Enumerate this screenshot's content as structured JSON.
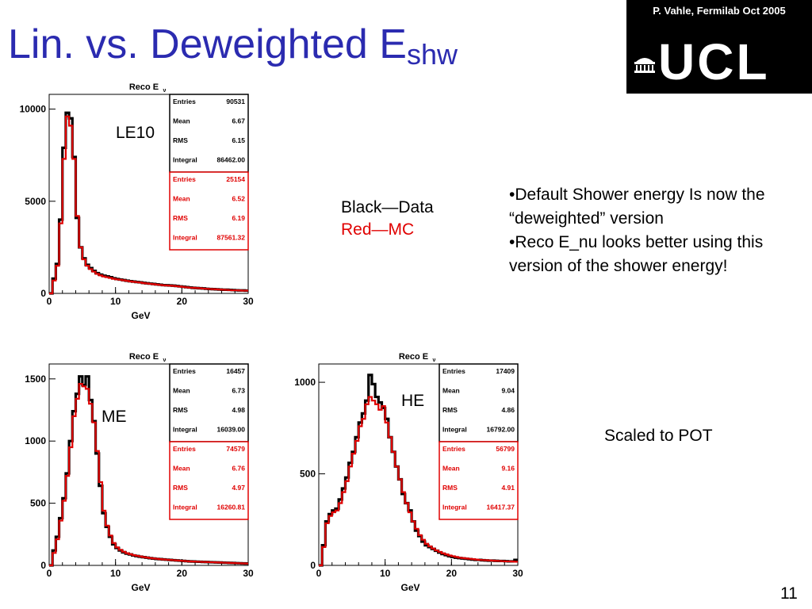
{
  "slide": {
    "title_main": "Lin. vs. Deweighted E",
    "title_sub": "shw",
    "credit": "P. Vahle, Fermilab Oct 2005",
    "logo_text": "UCL",
    "legend_black": "Black—Data",
    "legend_red": "Red—MC",
    "bullet1": "•Default Shower energy Is now the “deweighted” version",
    "bullet2": "•Reco E_nu looks better using this version of the shower energy!",
    "scaled_note": "Scaled to POT",
    "page_number": "11",
    "colors": {
      "title": "#2b2bb0",
      "data": "#000000",
      "mc": "#e00000",
      "logo_bg": "#000000"
    }
  },
  "chart_data": [
    {
      "type": "line",
      "id": "le10",
      "label": "LE10",
      "title": "Reco E",
      "title_sub": "ν",
      "xlabel": "GeV",
      "xlim": [
        0,
        30
      ],
      "ylim": [
        0,
        10800
      ],
      "xticks": [
        0,
        10,
        20,
        30
      ],
      "yticks": [
        0,
        5000,
        10000
      ],
      "ytick_labels": [
        "0",
        "5000",
        "10000"
      ],
      "bin_width": 0.5,
      "stats_data": {
        "Entries": "90531",
        "Mean": "6.67",
        "RMS": "6.15",
        "Integral": "86462.00"
      },
      "stats_mc": {
        "Entries": "25154",
        "Mean": "6.52",
        "RMS": "6.19",
        "Integral": "87561.32"
      },
      "series": [
        {
          "name": "Data",
          "color": "#000000",
          "values": [
            0,
            800,
            1600,
            4000,
            7900,
            9800,
            9500,
            7400,
            4100,
            2500,
            1900,
            1550,
            1370,
            1220,
            1100,
            1020,
            960,
            920,
            880,
            820,
            780,
            750,
            720,
            690,
            660,
            640,
            620,
            600,
            570,
            550,
            530,
            510,
            490,
            470,
            450,
            440,
            430,
            420,
            400,
            380,
            360,
            340,
            320,
            300,
            290,
            280,
            270,
            250,
            240,
            230,
            220,
            210,
            200,
            200,
            190,
            180,
            170,
            160,
            160,
            150
          ]
        },
        {
          "name": "MC",
          "color": "#e00000",
          "values": [
            0,
            700,
            1500,
            3800,
            7300,
            9600,
            9100,
            7300,
            4200,
            2500,
            1850,
            1500,
            1320,
            1180,
            1060,
            980,
            920,
            880,
            840,
            790,
            760,
            740,
            710,
            680,
            650,
            630,
            610,
            590,
            560,
            540,
            520,
            500,
            480,
            460,
            440,
            430,
            420,
            410,
            390,
            370,
            350,
            330,
            310,
            300,
            290,
            280,
            260,
            250,
            240,
            230,
            220,
            210,
            200,
            190,
            180,
            170,
            170,
            160,
            150,
            150
          ]
        }
      ]
    },
    {
      "type": "line",
      "id": "me",
      "label": "ME",
      "title": "Reco E",
      "title_sub": "ν",
      "xlabel": "GeV",
      "xlim": [
        0,
        30
      ],
      "ylim": [
        0,
        1620
      ],
      "xticks": [
        0,
        10,
        20,
        30
      ],
      "yticks": [
        0,
        500,
        1000,
        1500
      ],
      "ytick_labels": [
        "0",
        "500",
        "1000",
        "1500"
      ],
      "bin_width": 0.5,
      "stats_data": {
        "Entries": "16457",
        "Mean": "6.73",
        "RMS": "4.98",
        "Integral": "16039.00"
      },
      "stats_mc": {
        "Entries": "74579",
        "Mean": "6.76",
        "RMS": "4.97",
        "Integral": "16260.81"
      },
      "series": [
        {
          "name": "Data",
          "color": "#000000",
          "values": [
            0,
            120,
            230,
            380,
            540,
            740,
            1000,
            1240,
            1380,
            1520,
            1450,
            1520,
            1330,
            1160,
            900,
            640,
            420,
            310,
            230,
            170,
            140,
            120,
            105,
            95,
            88,
            80,
            75,
            70,
            66,
            62,
            58,
            55,
            52,
            50,
            48,
            46,
            44,
            42,
            40,
            38,
            36,
            34,
            32,
            31,
            30,
            29,
            28,
            27,
            26,
            25,
            24,
            23,
            22,
            21,
            20,
            19,
            18,
            17,
            16,
            15
          ]
        },
        {
          "name": "MC",
          "color": "#e00000",
          "values": [
            0,
            100,
            210,
            360,
            520,
            720,
            950,
            1200,
            1340,
            1460,
            1440,
            1420,
            1300,
            1150,
            920,
            670,
            440,
            320,
            240,
            180,
            145,
            125,
            110,
            98,
            90,
            82,
            77,
            72,
            67,
            63,
            59,
            56,
            53,
            50,
            48,
            46,
            44,
            42,
            40,
            38,
            36,
            34,
            32,
            31,
            30,
            29,
            28,
            27,
            26,
            25,
            24,
            23,
            22,
            21,
            20,
            19,
            18,
            17,
            16,
            15
          ]
        }
      ]
    },
    {
      "type": "line",
      "id": "he",
      "label": "HE",
      "title": "Reco E",
      "title_sub": "ν",
      "xlabel": "GeV",
      "xlim": [
        0,
        30
      ],
      "ylim": [
        0,
        1100
      ],
      "xticks": [
        0,
        10,
        20,
        30
      ],
      "yticks": [
        0,
        500,
        1000
      ],
      "ytick_labels": [
        "0",
        "500",
        "1000"
      ],
      "bin_width": 0.5,
      "stats_data": {
        "Entries": "17409",
        "Mean": "9.04",
        "RMS": "4.86",
        "Integral": "16792.00"
      },
      "stats_mc": {
        "Entries": "56799",
        "Mean": "9.16",
        "RMS": "4.91",
        "Integral": "16417.37"
      },
      "series": [
        {
          "name": "Data",
          "color": "#000000",
          "values": [
            0,
            110,
            240,
            280,
            300,
            310,
            360,
            420,
            480,
            560,
            620,
            700,
            780,
            830,
            900,
            1040,
            990,
            920,
            890,
            860,
            800,
            700,
            620,
            540,
            470,
            390,
            340,
            300,
            240,
            190,
            160,
            130,
            110,
            100,
            90,
            80,
            70,
            62,
            56,
            50,
            46,
            42,
            40,
            38,
            36,
            34,
            32,
            30,
            30,
            28,
            27,
            26,
            26,
            25,
            24,
            24,
            23,
            22,
            22,
            30
          ]
        },
        {
          "name": "MC",
          "color": "#e00000",
          "values": [
            0,
            100,
            230,
            270,
            290,
            300,
            340,
            400,
            460,
            540,
            610,
            680,
            760,
            800,
            880,
            920,
            900,
            880,
            850,
            870,
            780,
            700,
            620,
            540,
            470,
            400,
            340,
            290,
            240,
            200,
            165,
            140,
            118,
            104,
            92,
            82,
            74,
            66,
            60,
            54,
            50,
            46,
            42,
            40,
            38,
            36,
            34,
            32,
            30,
            29,
            28,
            27,
            26,
            25,
            24,
            23,
            22,
            22,
            21,
            20
          ]
        }
      ]
    }
  ]
}
